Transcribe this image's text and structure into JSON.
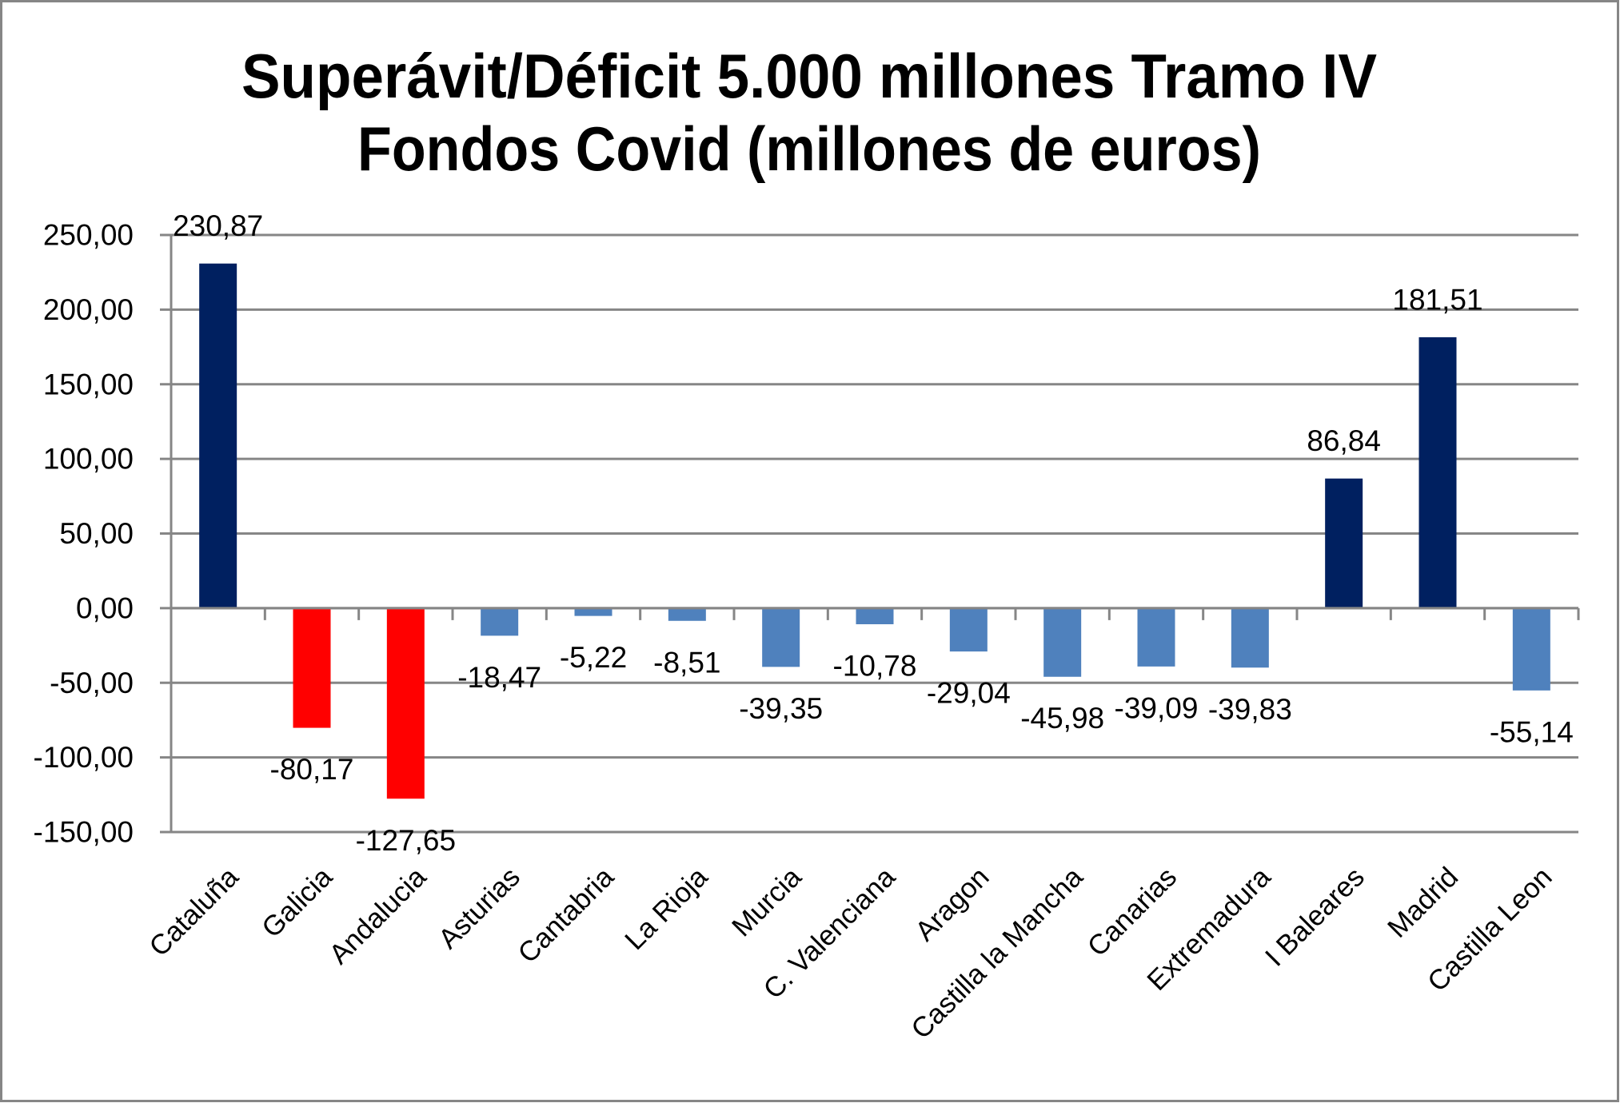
{
  "chart_data": {
    "type": "bar",
    "title": [
      "Superávit/Déficit 5.000 millones Tramo IV",
      "Fondos Covid (millones de euros)"
    ],
    "xlabel": "",
    "ylabel": "",
    "ylim": [
      -150,
      250
    ],
    "yticks": [
      250,
      200,
      150,
      100,
      50,
      0,
      -50,
      -100,
      -150
    ],
    "ytick_labels": [
      "250,00",
      "200,00",
      "150,00",
      "100,00",
      "50,00",
      "0,00",
      "-50,00",
      "-100,00",
      "-150,00"
    ],
    "grid": true,
    "legend": "none",
    "categories": [
      "Cataluña",
      "Galicia",
      "Andalucia",
      "Asturias",
      "Cantabria",
      "La Rioja",
      "Murcia",
      "C. Valenciana",
      "Aragon",
      "Castilla la Mancha",
      "Canarias",
      "Extremadura",
      "I Baleares",
      "Madrid",
      "Castilla Leon"
    ],
    "values": [
      230.87,
      -80.17,
      -127.65,
      -18.47,
      -5.22,
      -8.51,
      -39.35,
      -10.78,
      -29.04,
      -45.98,
      -39.09,
      -39.83,
      86.84,
      181.51,
      -55.14
    ],
    "data_labels": [
      "230,87",
      "-80,17",
      "-127,65",
      "-18,47",
      "-5,22",
      "-8,51",
      "-39,35",
      "-10,78",
      "-29,04",
      "-45,98",
      "-39,09",
      "-39,83",
      "86,84",
      "181,51",
      "-55,14"
    ],
    "bar_colors": [
      "#002060",
      "#FF0000",
      "#FF0000",
      "#4F81BD",
      "#4F81BD",
      "#4F81BD",
      "#4F81BD",
      "#4F81BD",
      "#4F81BD",
      "#4F81BD",
      "#4F81BD",
      "#4F81BD",
      "#002060",
      "#002060",
      "#4F81BD"
    ]
  },
  "colors": {
    "grid": "#868686",
    "frame": "#868686",
    "text": "#000000",
    "background": "#FFFFFF"
  }
}
